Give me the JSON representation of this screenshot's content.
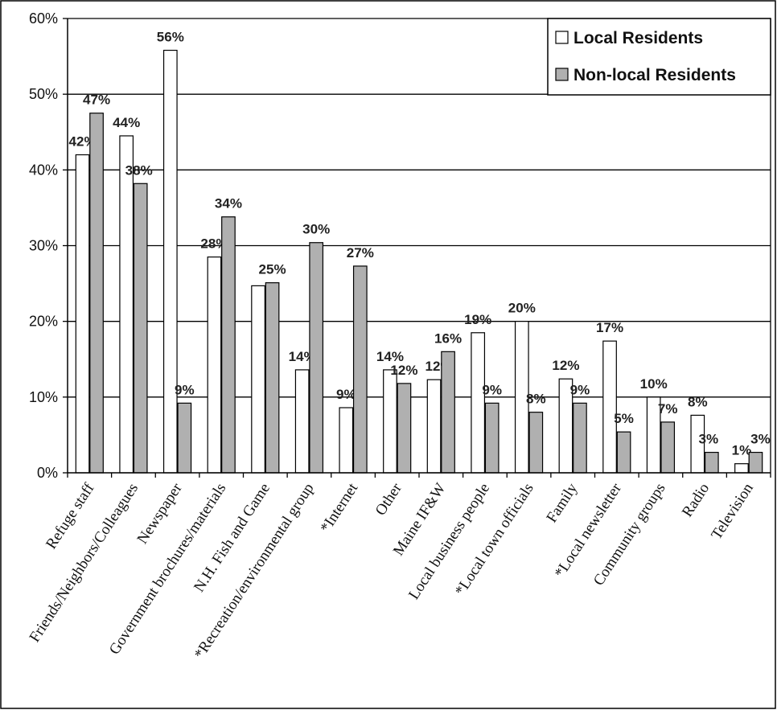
{
  "chart_data": {
    "type": "bar",
    "title": "",
    "xlabel": "",
    "ylabel": "",
    "ylim": [
      0,
      60
    ],
    "yticks": [
      "0%",
      "10%",
      "20%",
      "30%",
      "40%",
      "50%",
      "60%"
    ],
    "grid": "horizontal",
    "legend_position": "top-right",
    "categories": [
      "Refuge staff",
      "Friends/Neighbors/Colleagues",
      "Newspaper",
      "Government brochures/materials",
      "N.H. Fish and Game",
      "*Recreation/environmental group",
      "*Internet",
      "Other",
      "Maine IF&W",
      "Local business people",
      "*Local town officials",
      "Family",
      "*Local newsletter",
      "Community groups",
      "Radio",
      "Television"
    ],
    "series": [
      {
        "name": "Local Residents",
        "color": "#ffffff",
        "values": [
          42,
          44.5,
          55.8,
          28.5,
          24.7,
          13.6,
          8.6,
          13.6,
          12.3,
          18.5,
          20,
          12.4,
          17.4,
          10,
          7.6,
          1.2
        ],
        "labels": [
          "42%",
          "44%",
          "56%",
          "28%",
          null,
          "14%",
          "9%",
          "14%",
          "12%",
          "19%",
          "20%",
          "12%",
          "17%",
          "10%",
          "8%",
          "1%"
        ]
      },
      {
        "name": "Non-local Residents",
        "color": "#b0b0b0",
        "values": [
          47.5,
          38.2,
          9.2,
          33.8,
          25.1,
          30.4,
          27.3,
          11.8,
          16,
          9.2,
          8,
          9.2,
          5.4,
          6.7,
          2.7,
          2.7
        ],
        "labels": [
          "47%",
          "38%",
          "9%",
          "34%",
          "25%",
          "30%",
          "27%",
          "12%",
          "16%",
          "9%",
          "8%",
          "9%",
          "5%",
          "7%",
          "3%",
          "3%"
        ]
      }
    ]
  }
}
